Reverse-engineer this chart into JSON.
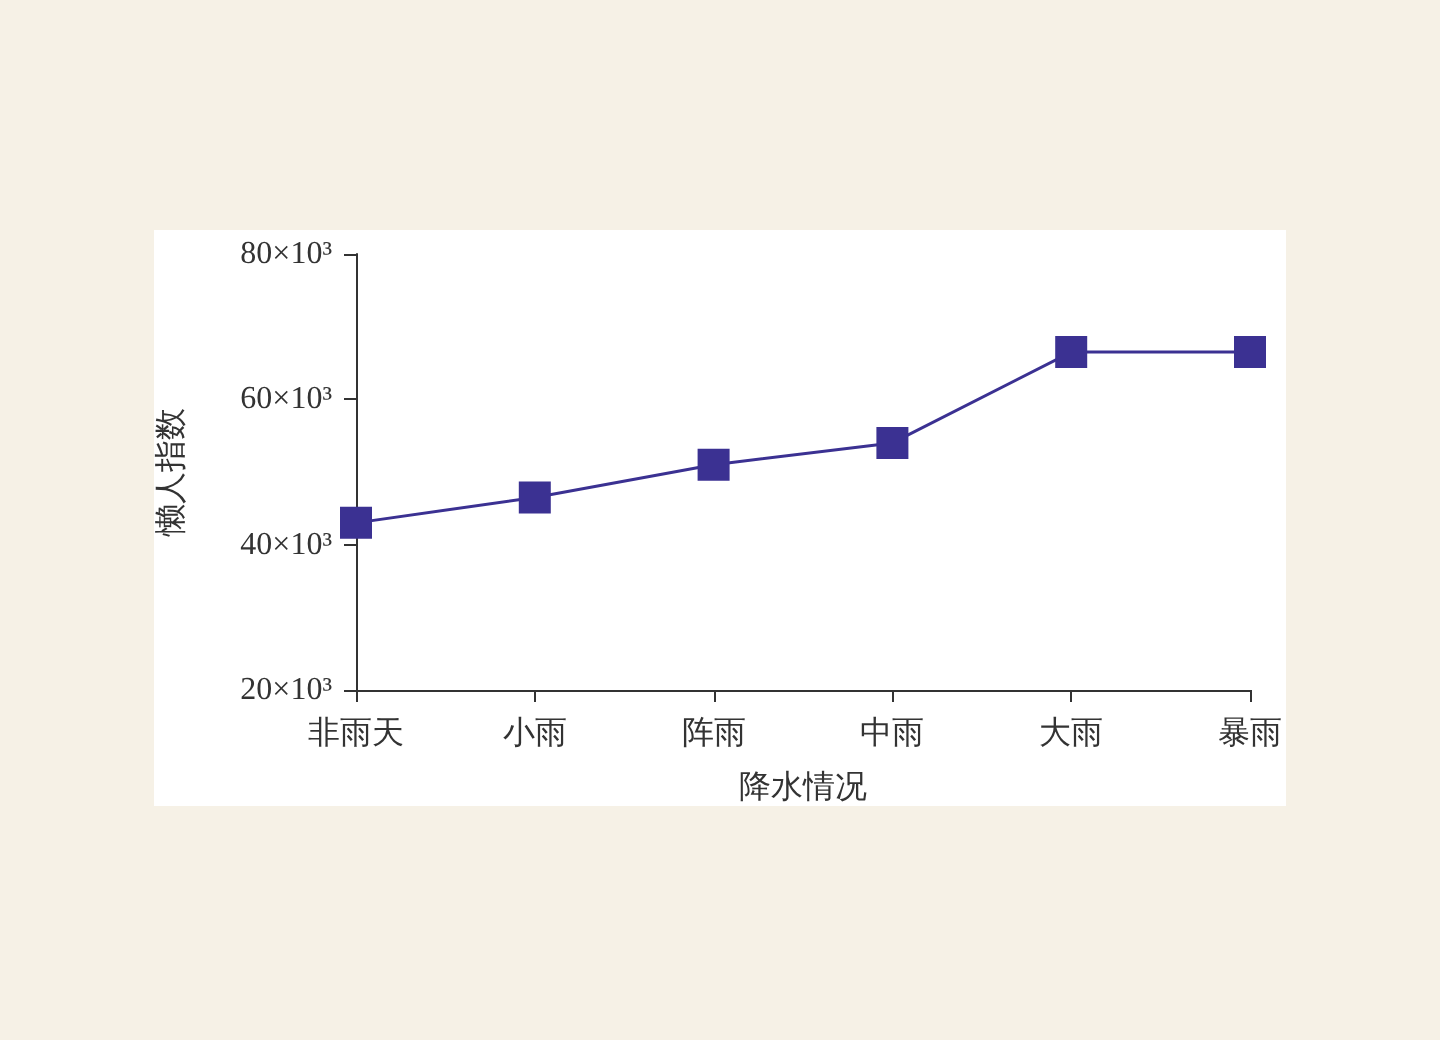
{
  "chart_data": {
    "type": "line",
    "xlabel": "降水情况",
    "ylabel": "懒人指数",
    "categories": [
      "非雨天",
      "小雨",
      "阵雨",
      "中雨",
      "大雨",
      "暴雨"
    ],
    "series": [
      {
        "color": "#3b3192",
        "values": [
          43000,
          46500,
          51000,
          54000,
          66500,
          66500
        ]
      }
    ],
    "ylim": [
      20000,
      80000
    ],
    "yticks": [
      {
        "value": 20000,
        "label": "20×10³"
      },
      {
        "value": 40000,
        "label": "40×10³"
      },
      {
        "value": 60000,
        "label": "60×10³"
      },
      {
        "value": 80000,
        "label": "80×10³"
      }
    ],
    "grid": false,
    "marker": "square",
    "line_style": "solid"
  }
}
